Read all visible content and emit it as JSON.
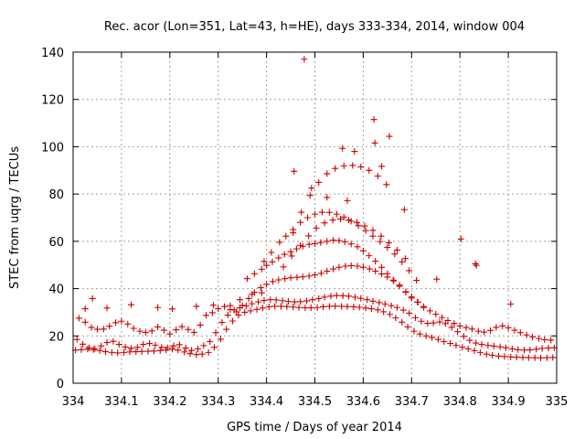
{
  "chart_data": {
    "type": "scatter",
    "title": "Rec. acor (Lon=351, Lat=43, h=HE), days 333-334, 2014, window 004",
    "xlabel": "GPS time / Days of year 2014",
    "ylabel": "STEC from uqrg / TECUs",
    "xlim": [
      334,
      335
    ],
    "ylim": [
      0,
      140
    ],
    "x_ticks": [
      334,
      334.1,
      334.2,
      334.3,
      334.4,
      334.5,
      334.6,
      334.7,
      334.8,
      334.9,
      335
    ],
    "x_tick_labels": [
      "334",
      "334.1",
      "334.2",
      "334.3",
      "334.4",
      "334.5",
      "334.6",
      "334.7",
      "334.8",
      "334.9",
      "335"
    ],
    "y_ticks": [
      0,
      20,
      40,
      60,
      80,
      100,
      120,
      140
    ],
    "y_tick_labels": [
      "0",
      "20",
      "40",
      "60",
      "80",
      "100",
      "120",
      "140"
    ],
    "grid": true,
    "marker": "plus",
    "color": "#cc0000",
    "series": [
      {
        "name": "STEC",
        "x": [
          334.005,
          334.017,
          334.03,
          334.042,
          334.055,
          334.067,
          334.08,
          334.092,
          334.105,
          334.117,
          334.13,
          334.142,
          334.155,
          334.167,
          334.18,
          334.192,
          334.205,
          334.217,
          334.23,
          334.242,
          334.255,
          334.267,
          334.28,
          334.292,
          334.305,
          334.317,
          334.33,
          334.342,
          334.355,
          334.367,
          334.38,
          334.392,
          334.405,
          334.417,
          334.43,
          334.442,
          334.455,
          334.467,
          334.48,
          334.492,
          334.505,
          334.517,
          334.53,
          334.542,
          334.555,
          334.567,
          334.58,
          334.592,
          334.605,
          334.617,
          334.63,
          334.642,
          334.655,
          334.667,
          334.68,
          334.692,
          334.705,
          334.717,
          334.73,
          334.742,
          334.755,
          334.767,
          334.78,
          334.792,
          334.805,
          334.817,
          334.83,
          334.842,
          334.855,
          334.867,
          334.88,
          334.892,
          334.905,
          334.917,
          334.93,
          334.942,
          334.955,
          334.967,
          334.98,
          334.992,
          334.008,
          334.02,
          334.033,
          334.045,
          334.058,
          334.07,
          334.083,
          334.095,
          334.108,
          334.12,
          334.133,
          334.145,
          334.158,
          334.17,
          334.183,
          334.195,
          334.208,
          334.22,
          334.233,
          334.245,
          334.258,
          334.27,
          334.283,
          334.295,
          334.308,
          334.32,
          334.333,
          334.345,
          334.358,
          334.37,
          334.383,
          334.395,
          334.408,
          334.42,
          334.433,
          334.445,
          334.458,
          334.47,
          334.483,
          334.495,
          334.508,
          334.52,
          334.533,
          334.545,
          334.558,
          334.57,
          334.583,
          334.595,
          334.608,
          334.62,
          334.633,
          334.645,
          334.658,
          334.67,
          334.683,
          334.695,
          334.708,
          334.72,
          334.733,
          334.745,
          334.758,
          334.77,
          334.783,
          334.795,
          334.808,
          334.82,
          334.833,
          334.845,
          334.858,
          334.87,
          334.883,
          334.895,
          334.908,
          334.92,
          334.933,
          334.945,
          334.958,
          334.97,
          334.983,
          334.995,
          334.012,
          334.025,
          334.038,
          334.05,
          334.063,
          334.075,
          334.088,
          334.1,
          334.113,
          334.125,
          334.138,
          334.15,
          334.163,
          334.175,
          334.188,
          334.2,
          334.213,
          334.225,
          334.238,
          334.25,
          334.263,
          334.275,
          334.288,
          334.3,
          334.313,
          334.325,
          334.338,
          334.35,
          334.363,
          334.375,
          334.388,
          334.4,
          334.413,
          334.425,
          334.438,
          334.45,
          334.463,
          334.475,
          334.488,
          334.5,
          334.513,
          334.525,
          334.538,
          334.55,
          334.563,
          334.575,
          334.588,
          334.6,
          334.613,
          334.625,
          334.638,
          334.65,
          334.663,
          334.675,
          334.688,
          334.7,
          334.713,
          334.725,
          334.738,
          334.75,
          334.763,
          334.775,
          334.788,
          334.8,
          334.813,
          334.825,
          334.838,
          334.85,
          334.863,
          334.875,
          334.888,
          334.9,
          334.913,
          334.925,
          334.938,
          334.95,
          334.963,
          334.975,
          334.988,
          334.36,
          334.375,
          334.39,
          334.4,
          334.412,
          334.425,
          334.437,
          334.45,
          334.462,
          334.475,
          334.488,
          334.5,
          334.512,
          334.525,
          334.538,
          334.55,
          334.562,
          334.575,
          334.588,
          334.6,
          334.612,
          334.625,
          334.638,
          334.65,
          334.662,
          334.675,
          334.688,
          334.7,
          334.712,
          334.725,
          334.395,
          334.41,
          334.427,
          334.44,
          334.455,
          334.47,
          334.485,
          334.5,
          334.515,
          334.53,
          334.545,
          334.56,
          334.575,
          334.59,
          334.605,
          334.62,
          334.635,
          334.65,
          334.665,
          334.68,
          334.695,
          334.71,
          334.435,
          334.452,
          334.47,
          334.487,
          334.503,
          334.52,
          334.537,
          334.553,
          334.57,
          334.587,
          334.603,
          334.62,
          334.637,
          334.653,
          334.67,
          334.687,
          334.455,
          334.472,
          334.49,
          334.508,
          334.525,
          334.542,
          334.56,
          334.578,
          334.595,
          334.612,
          334.63,
          334.648,
          334.025,
          334.04,
          334.07,
          334.12,
          334.175,
          334.205,
          334.255,
          334.29,
          334.325,
          334.345,
          334.37,
          334.39,
          334.457,
          334.478,
          334.493,
          334.525,
          334.557,
          334.567,
          334.582,
          334.622,
          334.624,
          334.638,
          334.654,
          334.685,
          334.752,
          334.802,
          334.832,
          334.834,
          334.905
        ],
        "y": [
          14.0,
          14.2,
          14.4,
          14.2,
          13.8,
          13.3,
          13.0,
          12.8,
          13.0,
          13.2,
          13.3,
          13.4,
          13.5,
          13.6,
          13.8,
          14.1,
          14.4,
          14.0,
          13.2,
          12.5,
          12.1,
          12.3,
          13.0,
          15.2,
          18.6,
          22.8,
          26.3,
          28.8,
          30.0,
          30.6,
          31.2,
          31.8,
          32.3,
          32.5,
          32.5,
          32.4,
          32.2,
          32.0,
          31.9,
          31.9,
          32.0,
          32.3,
          32.5,
          32.6,
          32.5,
          32.4,
          32.3,
          32.1,
          31.8,
          31.5,
          31.0,
          30.2,
          29.1,
          27.6,
          25.8,
          23.8,
          22.0,
          20.8,
          20.0,
          19.3,
          18.5,
          17.6,
          16.8,
          16.0,
          15.2,
          14.5,
          13.8,
          13.0,
          12.3,
          11.8,
          11.5,
          11.3,
          11.1,
          11.0,
          10.9,
          10.8,
          10.8,
          10.7,
          10.8,
          10.9,
          18.5,
          16.5,
          15.0,
          14.6,
          15.8,
          17.2,
          17.7,
          16.4,
          15.3,
          14.8,
          15.2,
          16.4,
          16.8,
          16.1,
          15.2,
          15.0,
          15.8,
          16.3,
          14.9,
          13.9,
          14.5,
          15.9,
          17.6,
          21.4,
          25.7,
          28.8,
          31.0,
          31.9,
          32.7,
          33.6,
          34.4,
          35.0,
          35.3,
          35.2,
          34.9,
          34.6,
          34.4,
          34.5,
          34.8,
          35.3,
          35.8,
          36.4,
          36.8,
          37.1,
          37.0,
          36.8,
          36.4,
          35.9,
          35.3,
          34.7,
          34.1,
          33.5,
          32.8,
          32.0,
          30.9,
          29.6,
          27.7,
          26.2,
          25.3,
          25.5,
          25.9,
          25.2,
          23.6,
          21.8,
          19.8,
          18.1,
          17.0,
          16.4,
          16.0,
          15.7,
          15.4,
          15.0,
          14.5,
          14.2,
          14.0,
          14.1,
          14.4,
          14.7,
          14.9,
          15.0,
          27.5,
          25.8,
          23.6,
          22.8,
          22.9,
          24.1,
          25.6,
          26.2,
          25.0,
          23.2,
          22.0,
          21.5,
          22.1,
          23.8,
          22.4,
          20.8,
          22.6,
          23.9,
          22.7,
          21.5,
          24.6,
          28.7,
          29.8,
          31.5,
          32.4,
          31.1,
          30.2,
          32.9,
          35.8,
          38.4,
          40.4,
          41.8,
          43.0,
          43.7,
          44.2,
          44.6,
          44.8,
          45.0,
          45.3,
          45.8,
          46.5,
          47.4,
          48.3,
          49.0,
          49.5,
          49.7,
          49.5,
          49.0,
          48.3,
          47.4,
          46.2,
          44.9,
          43.3,
          41.5,
          38.5,
          36.0,
          34.2,
          32.4,
          30.6,
          29.2,
          27.8,
          26.5,
          25.3,
          24.2,
          23.5,
          22.9,
          22.0,
          21.6,
          22.3,
          23.6,
          24.2,
          23.4,
          22.4,
          21.4,
          20.4,
          19.6,
          18.9,
          18.4,
          18.2,
          44.2,
          46.3,
          48.2,
          49.8,
          51.3,
          53.0,
          54.5,
          55.6,
          56.8,
          57.9,
          58.7,
          59.0,
          59.5,
          60.0,
          60.5,
          60.3,
          59.8,
          58.9,
          57.7,
          56.0,
          53.9,
          51.6,
          49.0,
          46.3,
          43.6,
          41.0,
          38.7,
          36.5,
          34.3,
          32.0,
          51.5,
          55.3,
          59.6,
          62.2,
          65.0,
          68.0,
          70.0,
          71.5,
          72.3,
          72.2,
          71.5,
          70.2,
          68.5,
          66.6,
          64.5,
          62.2,
          59.9,
          57.4,
          54.6,
          51.3,
          47.6,
          43.5,
          49.2,
          53.8,
          58.3,
          62.3,
          65.6,
          67.8,
          69.0,
          69.4,
          69.0,
          68.0,
          66.5,
          64.6,
          62.2,
          59.4,
          56.3,
          52.7,
          63.6,
          72.3,
          79.4,
          84.9,
          88.6,
          90.8,
          91.9,
          92.1,
          91.5,
          90.0,
          87.6,
          84.0,
          31.5,
          35.8,
          31.8,
          33.2,
          32.0,
          31.4,
          32.5,
          33.0,
          32.8,
          35.3,
          37.6,
          38.2,
          89.6,
          137.0,
          82.5,
          78.6,
          99.3,
          77.2,
          98.0,
          111.5,
          101.6,
          91.7,
          104.4,
          73.4,
          44.0,
          61.0,
          50.5,
          49.8,
          33.5
        ]
      }
    ]
  }
}
